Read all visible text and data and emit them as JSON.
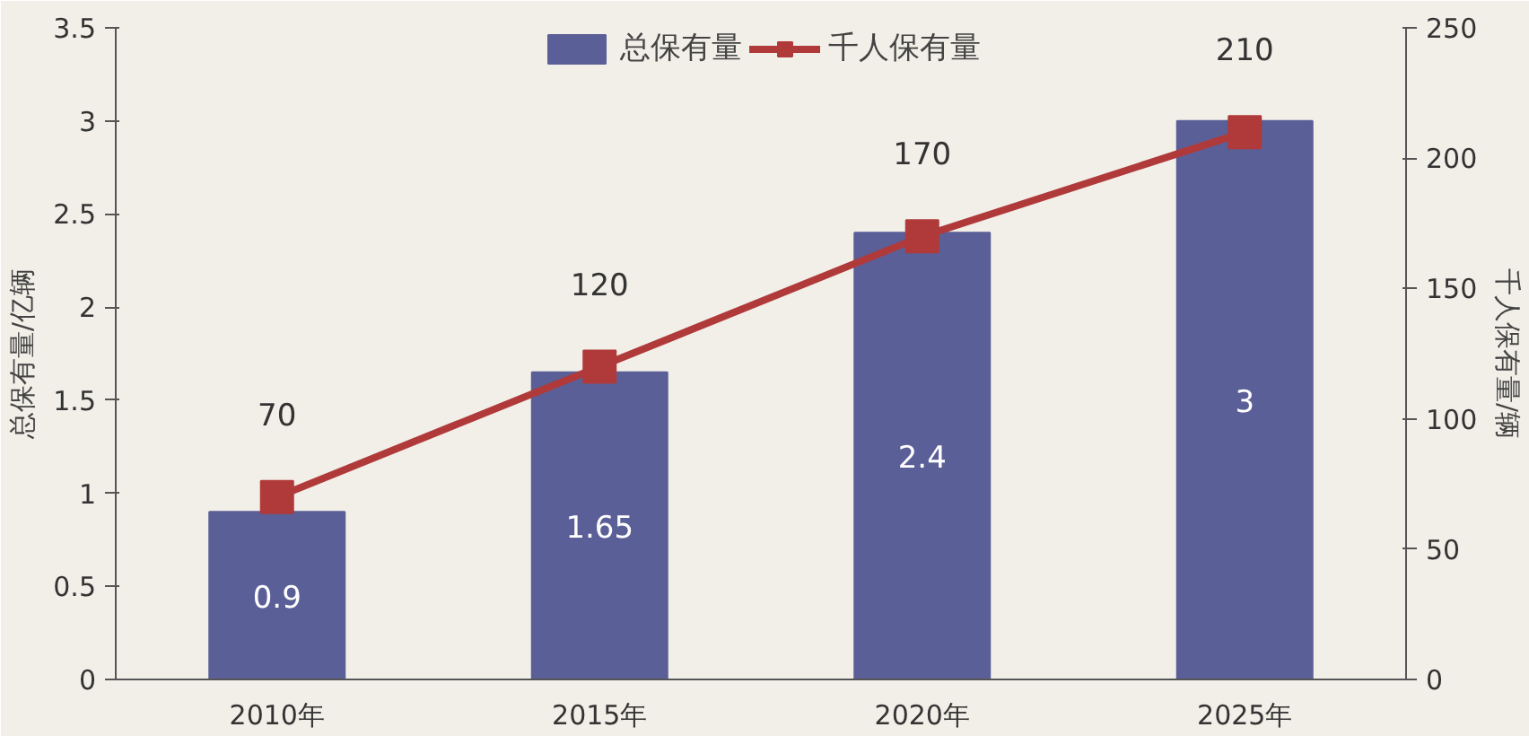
{
  "chart_data": {
    "type": "bar",
    "categories": [
      "2010年",
      "2015年",
      "2020年",
      "2025年"
    ],
    "ylabel": "总保有量/亿辆",
    "y2label": "千人保有量/辆",
    "series": [
      {
        "name": "总保有量",
        "color": "#5b5f97",
        "values": [
          0.9,
          1.65,
          2.4,
          3
        ]
      },
      {
        "name": "千人保有量",
        "type": "line",
        "axis": "y2",
        "color": "#b03a3a",
        "marker": "square",
        "values": [
          70,
          120,
          170,
          210
        ]
      }
    ],
    "ylim": [
      0,
      3.5
    ],
    "yticks": [
      0,
      0.5,
      1,
      1.5,
      2,
      2.5,
      3,
      3.5
    ],
    "y2lim": [
      0,
      250
    ],
    "y2ticks": [
      0,
      50,
      100,
      150,
      200,
      250
    ],
    "data_labels": true,
    "legend": "top",
    "grid": false
  }
}
